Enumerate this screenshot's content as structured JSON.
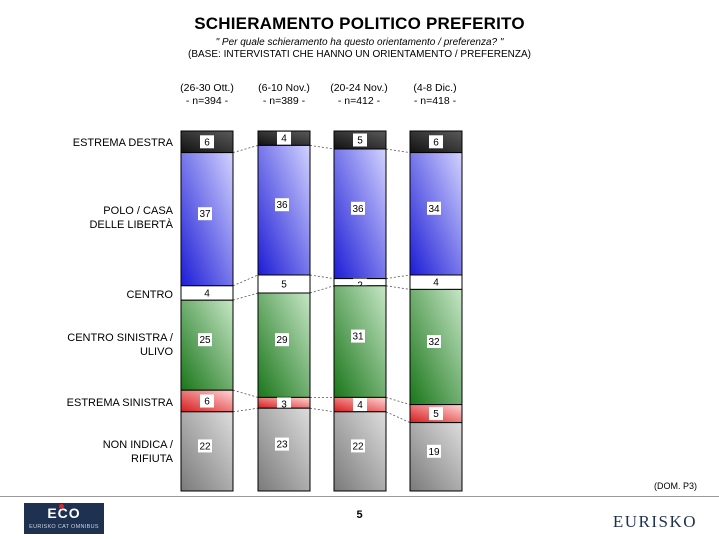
{
  "header": {
    "title": "SCHIERAMENTO POLITICO PREFERITO",
    "question": "\" Per quale schieramento ha questo orientamento / preferenza? \"",
    "base": "(BASE: INTERVISTATI CHE HANNO UN ORIENTAMENTO / PREFERENZA)"
  },
  "columns": [
    {
      "period": "(26-30 Ott.)",
      "n": "- n=394 -"
    },
    {
      "period": "(6-10 Nov.)",
      "n": "- n=389 -"
    },
    {
      "period": "(20-24 Nov.)",
      "n": "- n=412 -"
    },
    {
      "period": "(4-8 Dic.)",
      "n": "- n=418 -"
    }
  ],
  "categories": [
    {
      "line1": "ESTREMA DESTRA",
      "line2": ""
    },
    {
      "line1": "POLO / CASA",
      "line2": "DELLE LIBERTÀ"
    },
    {
      "line1": "CENTRO",
      "line2": ""
    },
    {
      "line1": "CENTRO SINISTRA /",
      "line2": "ULIVO"
    },
    {
      "line1": "ESTREMA SINISTRA",
      "line2": ""
    },
    {
      "line1": "NON INDICA /",
      "line2": "RIFIUTA"
    }
  ],
  "chart_data": {
    "type": "bar",
    "stacked": true,
    "unit": "%",
    "title": "SCHIERAMENTO POLITICO PREFERITO",
    "categories": [
      "(26-30 Ott.)",
      "(6-10 Nov.)",
      "(20-24 Nov.)",
      "(4-8 Dic.)"
    ],
    "series": [
      {
        "name": "ESTREMA DESTRA",
        "values": [
          6,
          4,
          5,
          6
        ],
        "color": "#2c2c2c"
      },
      {
        "name": "POLO / CASA DELLE LIBERTÀ",
        "values": [
          37,
          36,
          36,
          34
        ],
        "color": "#3434e6"
      },
      {
        "name": "CENTRO",
        "values": [
          4,
          5,
          2,
          4
        ],
        "color": "#ffffff"
      },
      {
        "name": "CENTRO SINISTRA / ULIVO",
        "values": [
          25,
          29,
          31,
          32
        ],
        "color": "#2e8a2e"
      },
      {
        "name": "ESTREMA SINISTRA",
        "values": [
          6,
          3,
          4,
          5
        ],
        "color": "#e03434"
      },
      {
        "name": "NON INDICA / RIFIUTA",
        "values": [
          22,
          23,
          22,
          19
        ],
        "color": "#9a9a9a"
      }
    ],
    "connector_lines": true
  },
  "footer": {
    "source_code": "(DOM. P3)",
    "page_number": "5",
    "eco_logo_text": "ECO",
    "eco_logo_subtext": "EURISKO CAT OMNIBUS",
    "eurisko_logo_text": "EURISKO"
  }
}
